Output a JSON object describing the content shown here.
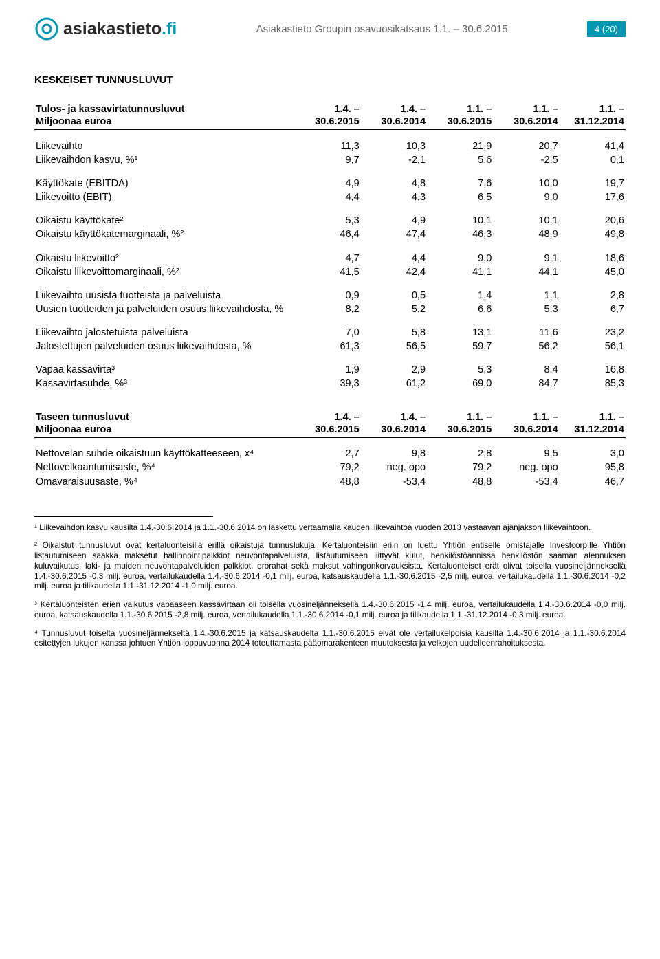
{
  "header": {
    "logo_main": "asiakastieto",
    "logo_tld": ".fi",
    "title": "Asiakastieto Groupin osavuosikatsaus 1.1. – 30.6.2015",
    "page_badge": "4 (20)"
  },
  "colors": {
    "brand": "#0097b2",
    "text": "#000000",
    "header_text": "#666666",
    "bg": "#ffffff"
  },
  "section1": {
    "title": "KESKEISET TUNNUSLUVUT",
    "table_heading_label": "Tulos- ja kassavirtatunnusluvut",
    "table_heading_sub": "Miljoonaa euroa",
    "columns": [
      "1.4. – 30.6.2015",
      "1.4. – 30.6.2014",
      "1.1. – 30.6.2015",
      "1.1. – 30.6.2014",
      "1.1. – 31.12.2014"
    ],
    "col_line1": [
      "1.4. –",
      "1.4. –",
      "1.1. –",
      "1.1. –",
      "1.1. –"
    ],
    "col_line2": [
      "30.6.2015",
      "30.6.2014",
      "30.6.2015",
      "30.6.2014",
      "31.12.2014"
    ],
    "rows": [
      {
        "label": "Liikevaihto",
        "v": [
          "11,3",
          "10,3",
          "21,9",
          "20,7",
          "41,4"
        ]
      },
      {
        "label": "Liikevaihdon kasvu, %¹",
        "v": [
          "9,7",
          "-2,1",
          "5,6",
          "-2,5",
          "0,1"
        ]
      }
    ],
    "rows2": [
      {
        "label": "Käyttökate (EBITDA)",
        "v": [
          "4,9",
          "4,8",
          "7,6",
          "10,0",
          "19,7"
        ]
      },
      {
        "label": "Liikevoitto (EBIT)",
        "v": [
          "4,4",
          "4,3",
          "6,5",
          "9,0",
          "17,6"
        ]
      }
    ],
    "rows3": [
      {
        "label": "Oikaistu käyttökate²",
        "v": [
          "5,3",
          "4,9",
          "10,1",
          "10,1",
          "20,6"
        ]
      },
      {
        "label": "Oikaistu käyttökatemarginaali, %²",
        "v": [
          "46,4",
          "47,4",
          "46,3",
          "48,9",
          "49,8"
        ]
      }
    ],
    "rows4": [
      {
        "label": "Oikaistu liikevoitto²",
        "v": [
          "4,7",
          "4,4",
          "9,0",
          "9,1",
          "18,6"
        ]
      },
      {
        "label": "Oikaistu liikevoittomarginaali, %²",
        "v": [
          "41,5",
          "42,4",
          "41,1",
          "44,1",
          "45,0"
        ]
      }
    ],
    "rows5": [
      {
        "label": "Liikevaihto uusista tuotteista ja palveluista",
        "v": [
          "0,9",
          "0,5",
          "1,4",
          "1,1",
          "2,8"
        ]
      },
      {
        "label": "Uusien tuotteiden ja palveluiden osuus liikevaihdosta, %",
        "v": [
          "8,2",
          "5,2",
          "6,6",
          "5,3",
          "6,7"
        ]
      }
    ],
    "rows6": [
      {
        "label": "Liikevaihto jalostetuista palveluista",
        "v": [
          "7,0",
          "5,8",
          "13,1",
          "11,6",
          "23,2"
        ]
      },
      {
        "label": "Jalostettujen palveluiden osuus liikevaihdosta, %",
        "v": [
          "61,3",
          "56,5",
          "59,7",
          "56,2",
          "56,1"
        ]
      }
    ],
    "rows7": [
      {
        "label": "Vapaa kassavirta³",
        "v": [
          "1,9",
          "2,9",
          "5,3",
          "8,4",
          "16,8"
        ]
      },
      {
        "label": "Kassavirtasuhde, %³",
        "v": [
          "39,3",
          "61,2",
          "69,0",
          "84,7",
          "85,3"
        ]
      }
    ]
  },
  "section2": {
    "table_heading_label": "Taseen tunnusluvut",
    "table_heading_sub": "Miljoonaa euroa",
    "col_line1": [
      "1.4. –",
      "1.4. –",
      "1.1. –",
      "1.1. –",
      "1.1. –"
    ],
    "col_line2": [
      "30.6.2015",
      "30.6.2014",
      "30.6.2015",
      "30.6.2014",
      "31.12.2014"
    ],
    "rows": [
      {
        "label": "Nettovelan suhde oikaistuun käyttökatteeseen, x⁴",
        "v": [
          "2,7",
          "9,8",
          "2,8",
          "9,5",
          "3,0"
        ]
      },
      {
        "label": "Nettovelkaantumisaste, %⁴",
        "v": [
          "79,2",
          "neg. opo",
          "79,2",
          "neg. opo",
          "95,8"
        ]
      },
      {
        "label": "Omavaraisuusaste, %⁴",
        "v": [
          "48,8",
          "-53,4",
          "48,8",
          "-53,4",
          "46,7"
        ]
      }
    ]
  },
  "footnotes": {
    "f1": "¹ Liikevaihdon kasvu kausilta 1.4.-30.6.2014 ja 1.1.-30.6.2014 on laskettu vertaamalla kauden liikevaihtoa vuoden 2013 vastaavan ajanjakson liikevaihtoon.",
    "f2": "² Oikaistut tunnusluvut ovat kertaluonteisilla erillä oikaistuja tunnuslukuja. Kertaluonteisiin eriin on luettu Yhtiön entiselle omistajalle Investcorp:lle Yhtiön listautumiseen saakka maksetut hallinnointipalkkiot neuvontapalveluista, listautumiseen liittyvät kulut, henkilöstöannissa henkilöstön saaman alennuksen kuluvaikutus, laki- ja muiden neuvontapalveluiden palkkiot, erorahat sekä maksut vahingonkorvauksista. Kertaluonteiset erät olivat toisella vuosineljänneksellä 1.4.-30.6.2015 -0,3 milj. euroa, vertailukaudella 1.4.-30.6.2014 -0,1 milj. euroa, katsauskaudella 1.1.-30.6.2015 -2,5 milj. euroa, vertailukaudella 1.1.-30.6.2014 -0,2 milj. euroa ja tilikaudella 1.1.-31.12.2014 -1,0 milj. euroa.",
    "f3": "³ Kertaluonteisten erien vaikutus vapaaseen kassavirtaan oli toisella vuosineljänneksellä 1.4.-30.6.2015 -1,4 milj. euroa, vertailukaudella 1.4.-30.6.2014 -0,0 milj. euroa, katsauskaudella 1.1.-30.6.2015 -2,8 milj. euroa, vertailukaudella 1.1.-30.6.2014 -0,1 milj. euroa ja tilikaudella 1.1.-31.12.2014 -0,3 milj. euroa.",
    "f4": "⁴ Tunnusluvut toiselta vuosineljännekseltä 1.4.-30.6.2015 ja katsauskaudelta 1.1.-30.6.2015 eivät ole vertailukelpoisia kausilta 1.4.-30.6.2014 ja 1.1.-30.6.2014 esitettyjen lukujen kanssa johtuen Yhtiön loppuvuonna 2014 toteuttamasta pääomarakenteen muutoksesta ja velkojen uudelleenrahoituksesta."
  }
}
